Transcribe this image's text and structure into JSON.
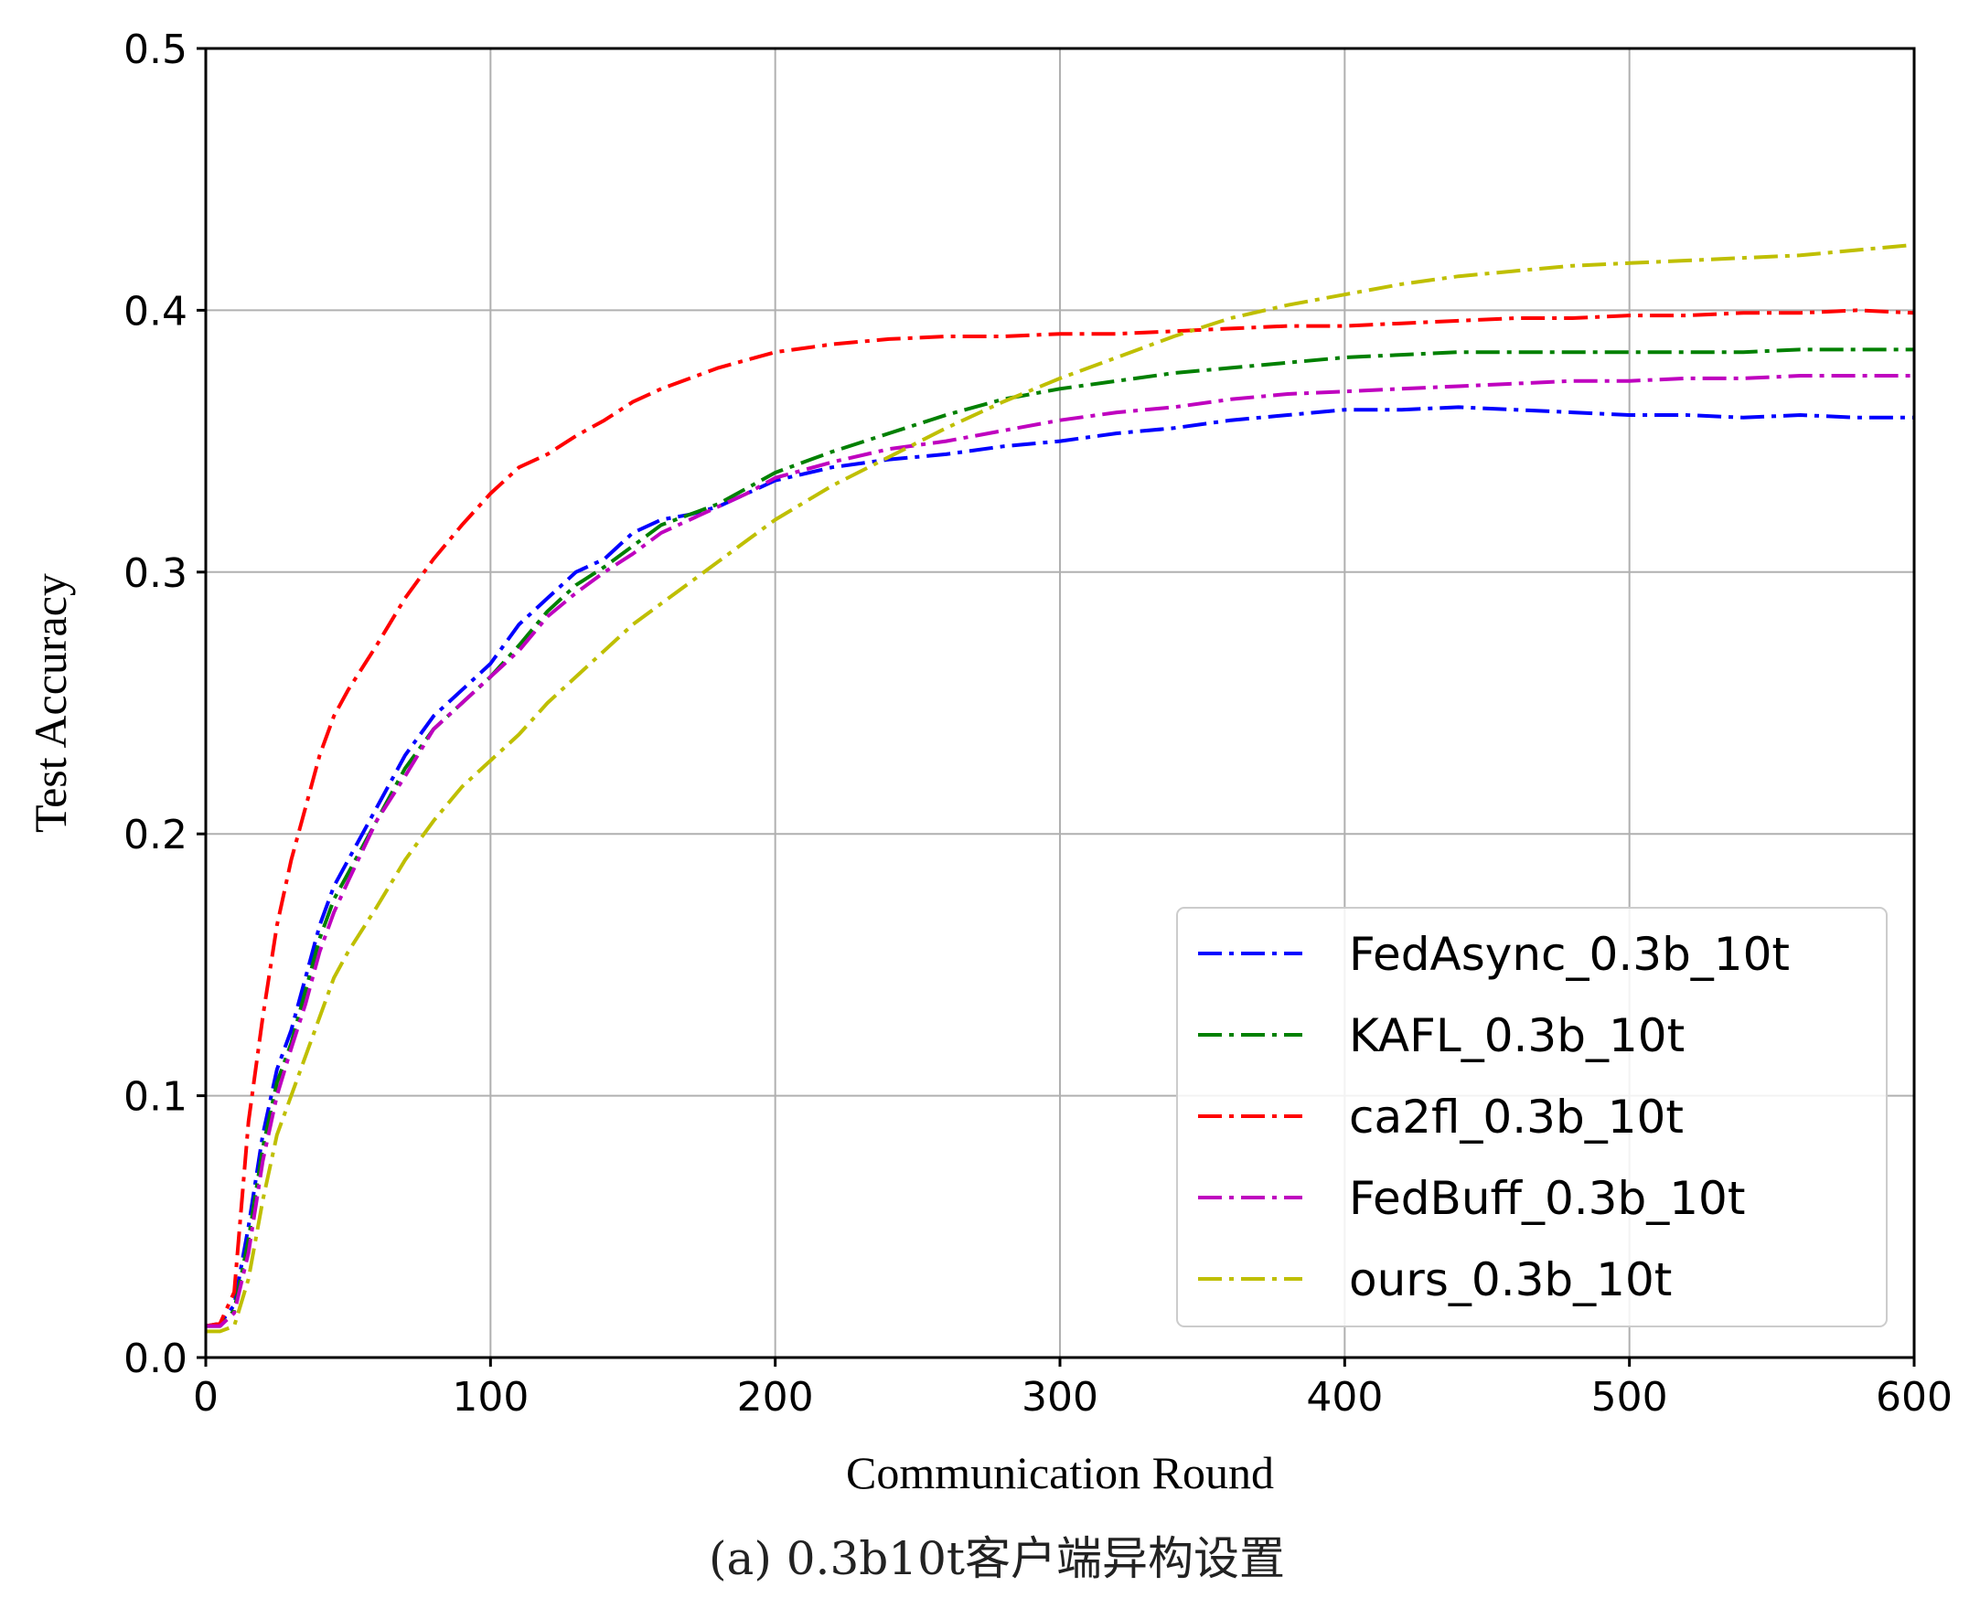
{
  "chart_data": {
    "type": "line",
    "xlabel": "Communication Round",
    "ylabel": "Test Accuracy",
    "caption": "(a) 0.3b10t客户端异构设置",
    "xlim": [
      0,
      600
    ],
    "ylim": [
      0,
      0.5
    ],
    "xticks": [
      0,
      100,
      200,
      300,
      400,
      500,
      600
    ],
    "yticks": [
      0.0,
      0.1,
      0.2,
      0.3,
      0.4,
      0.5
    ],
    "xtick_labels": [
      "0",
      "100",
      "200",
      "300",
      "400",
      "500",
      "600"
    ],
    "ytick_labels": [
      "0.0",
      "0.1",
      "0.2",
      "0.3",
      "0.4",
      "0.5"
    ],
    "grid": true,
    "legend_position": "lower-right",
    "series": [
      {
        "name": "FedAsync_0.3b_10t",
        "color": "#0000ff",
        "x": [
          0,
          5,
          10,
          15,
          20,
          25,
          30,
          35,
          40,
          45,
          50,
          60,
          70,
          80,
          90,
          100,
          110,
          120,
          130,
          140,
          150,
          160,
          170,
          180,
          190,
          200,
          220,
          240,
          260,
          280,
          300,
          320,
          340,
          360,
          380,
          400,
          420,
          440,
          460,
          480,
          500,
          520,
          540,
          560,
          580,
          600
        ],
        "y": [
          0.012,
          0.013,
          0.02,
          0.05,
          0.085,
          0.11,
          0.125,
          0.145,
          0.165,
          0.18,
          0.19,
          0.21,
          0.23,
          0.245,
          0.255,
          0.265,
          0.28,
          0.29,
          0.3,
          0.305,
          0.315,
          0.32,
          0.322,
          0.325,
          0.33,
          0.335,
          0.34,
          0.343,
          0.345,
          0.348,
          0.35,
          0.353,
          0.355,
          0.358,
          0.36,
          0.362,
          0.362,
          0.363,
          0.362,
          0.361,
          0.36,
          0.36,
          0.359,
          0.36,
          0.359,
          0.359
        ]
      },
      {
        "name": "KAFL_0.3b_10t",
        "color": "#008000",
        "x": [
          0,
          5,
          10,
          15,
          20,
          25,
          30,
          35,
          40,
          45,
          50,
          60,
          70,
          80,
          90,
          100,
          110,
          120,
          130,
          140,
          150,
          160,
          170,
          180,
          190,
          200,
          220,
          240,
          260,
          280,
          300,
          320,
          340,
          360,
          380,
          400,
          420,
          440,
          460,
          480,
          500,
          520,
          540,
          560,
          580,
          600
        ],
        "y": [
          0.012,
          0.012,
          0.018,
          0.045,
          0.08,
          0.105,
          0.12,
          0.14,
          0.16,
          0.175,
          0.185,
          0.205,
          0.225,
          0.24,
          0.25,
          0.26,
          0.272,
          0.285,
          0.295,
          0.302,
          0.31,
          0.318,
          0.322,
          0.326,
          0.332,
          0.338,
          0.346,
          0.353,
          0.36,
          0.366,
          0.37,
          0.373,
          0.376,
          0.378,
          0.38,
          0.382,
          0.383,
          0.384,
          0.384,
          0.384,
          0.384,
          0.384,
          0.384,
          0.385,
          0.385,
          0.385
        ]
      },
      {
        "name": "ca2fl_0.3b_10t",
        "color": "#ff0000",
        "x": [
          0,
          5,
          10,
          15,
          20,
          25,
          30,
          35,
          40,
          45,
          50,
          60,
          70,
          80,
          90,
          100,
          110,
          120,
          130,
          140,
          150,
          160,
          170,
          180,
          190,
          200,
          220,
          240,
          260,
          280,
          300,
          320,
          340,
          360,
          380,
          400,
          420,
          440,
          460,
          480,
          500,
          520,
          540,
          560,
          580,
          600
        ],
        "y": [
          0.012,
          0.013,
          0.025,
          0.09,
          0.13,
          0.165,
          0.19,
          0.21,
          0.23,
          0.245,
          0.255,
          0.272,
          0.29,
          0.305,
          0.318,
          0.33,
          0.34,
          0.345,
          0.352,
          0.358,
          0.365,
          0.37,
          0.374,
          0.378,
          0.381,
          0.384,
          0.387,
          0.389,
          0.39,
          0.39,
          0.391,
          0.391,
          0.392,
          0.393,
          0.394,
          0.394,
          0.395,
          0.396,
          0.397,
          0.397,
          0.398,
          0.398,
          0.399,
          0.399,
          0.4,
          0.399
        ]
      },
      {
        "name": "FedBuff_0.3b_10t",
        "color": "#bf00bf",
        "x": [
          0,
          5,
          10,
          15,
          20,
          25,
          30,
          35,
          40,
          45,
          50,
          60,
          70,
          80,
          90,
          100,
          110,
          120,
          130,
          140,
          150,
          160,
          170,
          180,
          190,
          200,
          220,
          240,
          260,
          280,
          300,
          320,
          340,
          360,
          380,
          400,
          420,
          440,
          460,
          480,
          500,
          520,
          540,
          560,
          580,
          600
        ],
        "y": [
          0.012,
          0.012,
          0.017,
          0.04,
          0.075,
          0.1,
          0.118,
          0.135,
          0.155,
          0.17,
          0.182,
          0.205,
          0.222,
          0.24,
          0.25,
          0.26,
          0.27,
          0.283,
          0.292,
          0.3,
          0.307,
          0.315,
          0.32,
          0.325,
          0.33,
          0.336,
          0.342,
          0.347,
          0.35,
          0.354,
          0.358,
          0.361,
          0.363,
          0.366,
          0.368,
          0.369,
          0.37,
          0.371,
          0.372,
          0.373,
          0.373,
          0.374,
          0.374,
          0.375,
          0.375,
          0.375
        ]
      },
      {
        "name": "ours_0.3b_10t",
        "color": "#bfbf00",
        "x": [
          0,
          5,
          10,
          15,
          20,
          25,
          30,
          35,
          40,
          45,
          50,
          60,
          70,
          80,
          90,
          100,
          110,
          120,
          130,
          140,
          150,
          160,
          170,
          180,
          190,
          200,
          220,
          240,
          260,
          280,
          300,
          320,
          340,
          360,
          380,
          400,
          420,
          440,
          460,
          480,
          500,
          520,
          540,
          560,
          580,
          600
        ],
        "y": [
          0.01,
          0.01,
          0.012,
          0.03,
          0.06,
          0.085,
          0.1,
          0.115,
          0.13,
          0.145,
          0.155,
          0.172,
          0.19,
          0.205,
          0.218,
          0.228,
          0.238,
          0.25,
          0.26,
          0.27,
          0.28,
          0.288,
          0.296,
          0.304,
          0.312,
          0.32,
          0.333,
          0.344,
          0.355,
          0.365,
          0.374,
          0.382,
          0.39,
          0.397,
          0.402,
          0.406,
          0.41,
          0.413,
          0.415,
          0.417,
          0.418,
          0.419,
          0.42,
          0.421,
          0.423,
          0.425
        ]
      }
    ]
  }
}
